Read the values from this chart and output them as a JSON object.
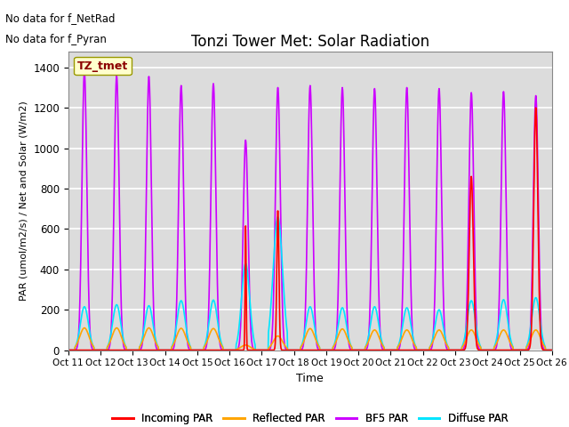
{
  "title": "Tonzi Tower Met: Solar Radiation",
  "xlabel": "Time",
  "ylabel": "PAR (umol/m2/s) / Net and Solar (W/m2)",
  "ylim": [
    0,
    1480
  ],
  "background_color": "#dcdcdc",
  "annotation1": "No data for f_NetRad",
  "annotation2": "No data for f_Pyran",
  "legend_box_label": "TZ_tmet",
  "x_tick_labels": [
    "Oct 11",
    "Oct 12",
    "Oct 13",
    "Oct 14",
    "Oct 15",
    "Oct 16",
    "Oct 17",
    "Oct 18",
    "Oct 19",
    "Oct 20",
    "Oct 21",
    "Oct 22",
    "Oct 23",
    "Oct 24",
    "Oct 25",
    "Oct 26"
  ],
  "series": {
    "bf5_par": {
      "color": "#cc00ff",
      "label": "BF5 PAR",
      "linewidth": 1.2
    },
    "incoming_par": {
      "color": "#ff0000",
      "label": "Incoming PAR",
      "linewidth": 1.2
    },
    "reflected_par": {
      "color": "#ffa500",
      "label": "Reflected PAR",
      "linewidth": 1.2
    },
    "diffuse_par": {
      "color": "#00e5ff",
      "label": "Diffuse PAR",
      "linewidth": 1.2
    }
  },
  "day_peaks_bf5": [
    1380,
    1360,
    1355,
    1310,
    1320,
    1040,
    1300,
    1310,
    1300,
    1295,
    1300,
    1295,
    1275,
    1280,
    1260
  ],
  "day_peaks_incoming": [
    0,
    0,
    0,
    0,
    0,
    615,
    690,
    0,
    0,
    0,
    0,
    0,
    860,
    0,
    1200
  ],
  "day_peaks_reflected": [
    110,
    110,
    110,
    108,
    107,
    25,
    70,
    107,
    105,
    100,
    100,
    100,
    100,
    100,
    100
  ],
  "day_peaks_diffuse": [
    215,
    225,
    220,
    245,
    248,
    430,
    660,
    215,
    210,
    215,
    210,
    200,
    245,
    250,
    260
  ],
  "bf5_widths": [
    1.8,
    1.8,
    1.8,
    1.8,
    1.8,
    1.8,
    1.8,
    1.8,
    1.8,
    1.8,
    1.8,
    1.8,
    1.8,
    1.8,
    1.8
  ],
  "incoming_widths": [
    1.0,
    1.0,
    1.0,
    1.0,
    1.0,
    0.4,
    0.8,
    1.0,
    1.0,
    1.0,
    1.0,
    1.0,
    1.5,
    1.0,
    1.5
  ],
  "reflected_widths": [
    3.5,
    3.5,
    3.5,
    3.5,
    3.5,
    3.5,
    3.5,
    3.5,
    3.5,
    3.5,
    3.5,
    3.5,
    3.5,
    3.5,
    3.5
  ],
  "diffuse_widths": [
    3.0,
    3.0,
    3.0,
    3.0,
    3.0,
    3.0,
    3.5,
    3.0,
    3.0,
    3.0,
    3.0,
    3.0,
    3.0,
    3.0,
    3.0
  ]
}
